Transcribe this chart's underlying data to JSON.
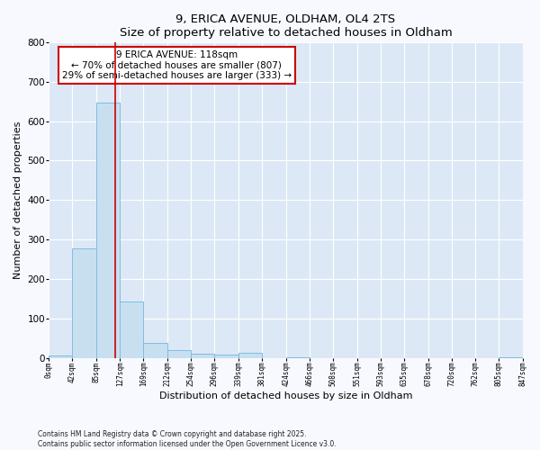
{
  "title": "9, ERICA AVENUE, OLDHAM, OL4 2TS",
  "subtitle": "Size of property relative to detached houses in Oldham",
  "xlabel": "Distribution of detached houses by size in Oldham",
  "ylabel": "Number of detached properties",
  "bar_edges": [
    0,
    42,
    85,
    127,
    169,
    212,
    254,
    296,
    339,
    381,
    424,
    466,
    508,
    551,
    593,
    635,
    678,
    720,
    762,
    805,
    847
  ],
  "bar_heights": [
    5,
    277,
    648,
    143,
    37,
    20,
    10,
    7,
    12,
    0,
    2,
    0,
    0,
    0,
    0,
    0,
    0,
    0,
    0,
    2
  ],
  "bar_color": "#c8dff0",
  "bar_edge_color": "#7fbde0",
  "vline_x": 118,
  "vline_color": "#cc0000",
  "ylim": [
    0,
    800
  ],
  "yticks": [
    0,
    100,
    200,
    300,
    400,
    500,
    600,
    700,
    800
  ],
  "annotation_title": "9 ERICA AVENUE: 118sqm",
  "annotation_line1": "← 70% of detached houses are smaller (807)",
  "annotation_line2": "29% of semi-detached houses are larger (333) →",
  "annotation_box_color": "#ffffff",
  "annotation_box_edgecolor": "#cc0000",
  "footnote1": "Contains HM Land Registry data © Crown copyright and database right 2025.",
  "footnote2": "Contains public sector information licensed under the Open Government Licence v3.0.",
  "fig_facecolor": "#f7f9ff",
  "plot_facecolor": "#dce8f5",
  "tick_labels": [
    "0sqm",
    "42sqm",
    "85sqm",
    "127sqm",
    "169sqm",
    "212sqm",
    "254sqm",
    "296sqm",
    "339sqm",
    "381sqm",
    "424sqm",
    "466sqm",
    "508sqm",
    "551sqm",
    "593sqm",
    "635sqm",
    "678sqm",
    "720sqm",
    "762sqm",
    "805sqm",
    "847sqm"
  ]
}
